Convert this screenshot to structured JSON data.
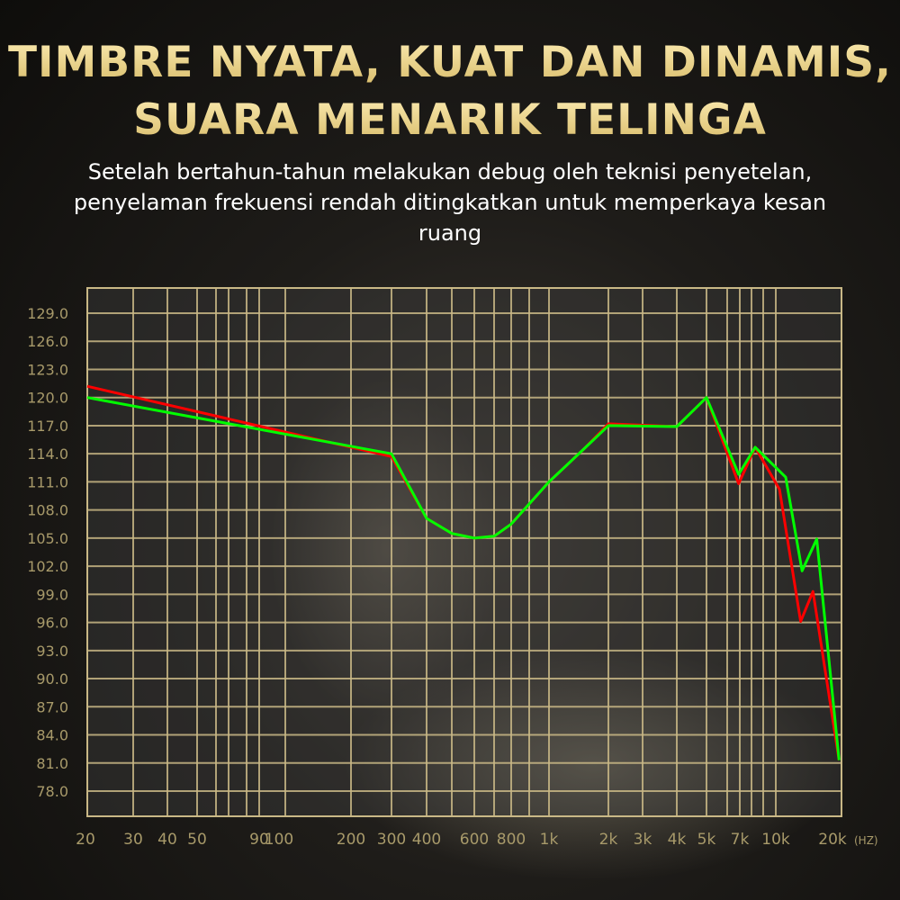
{
  "header": {
    "title_line1": "TIMBRE NYATA, KUAT DAN DINAMIS,",
    "title_line2": "SUARA MENARIK TELINGA",
    "subtitle": "Setelah bertahun-tahun melakukan debug oleh teknisi penyetelan, penyelaman frekuensi rendah ditingkatkan untuk memperkaya kesan ruang"
  },
  "colors": {
    "title_gold": "#efd98f",
    "grid": "#c9b886",
    "axis_label": "#a89a6a",
    "red_series": "#ff0000",
    "green_series": "#00ff00"
  },
  "chart_data": {
    "type": "line",
    "title": "",
    "xlabel": "(HZ)",
    "ylabel": "",
    "x_scale": "log",
    "xlim": [
      20,
      20000
    ],
    "ylim": [
      76.5,
      131.5
    ],
    "grid": true,
    "x_ticks": [
      {
        "value": 20,
        "label": "20"
      },
      {
        "value": 30,
        "label": "30"
      },
      {
        "value": 40,
        "label": "40"
      },
      {
        "value": 50,
        "label": "50"
      },
      {
        "value": 90,
        "label": "90"
      },
      {
        "value": 100,
        "label": "100"
      },
      {
        "value": 200,
        "label": "200"
      },
      {
        "value": 300,
        "label": "300"
      },
      {
        "value": 400,
        "label": "400"
      },
      {
        "value": 600,
        "label": "600"
      },
      {
        "value": 800,
        "label": "800"
      },
      {
        "value": 1000,
        "label": "1k"
      },
      {
        "value": 2000,
        "label": "2k"
      },
      {
        "value": 3000,
        "label": "3k"
      },
      {
        "value": 4000,
        "label": "4k"
      },
      {
        "value": 5000,
        "label": "5k"
      },
      {
        "value": 7000,
        "label": "7k"
      },
      {
        "value": 10000,
        "label": "10k"
      },
      {
        "value": 20000,
        "label": "20k"
      }
    ],
    "y_ticks": [
      "129.0",
      "126.0",
      "123.0",
      "120.0",
      "117.0",
      "114.0",
      "111.0",
      "108.0",
      "105.0",
      "102.0",
      "99.0",
      "96.0",
      "93.0",
      "90.0",
      "87.0",
      "84.0",
      "81.0",
      "78.0"
    ],
    "series": [
      {
        "color": "#ff0000",
        "x": [
          20,
          300,
          400,
          500,
          600,
          700,
          800,
          1000,
          1500,
          2000,
          4000,
          5000,
          6900,
          8300,
          10400,
          13000,
          14800,
          19500
        ],
        "y": [
          121.2,
          113.7,
          107.1,
          105.5,
          105.0,
          105.2,
          106.5,
          111.0,
          114.5,
          117.2,
          116.9,
          120.0,
          110.8,
          114.7,
          110.2,
          96.1,
          99.3,
          81.3
        ]
      },
      {
        "color": "#00ff00",
        "x": [
          20,
          300,
          400,
          500,
          600,
          700,
          800,
          1000,
          1500,
          2000,
          4000,
          5000,
          6900,
          8300,
          11100,
          13200,
          15400,
          19500
        ],
        "y": [
          120.0,
          114.0,
          107.1,
          105.5,
          105.0,
          105.2,
          106.5,
          111.0,
          114.5,
          117.0,
          116.9,
          120.0,
          111.8,
          114.7,
          111.5,
          101.5,
          104.9,
          81.3
        ]
      }
    ]
  }
}
